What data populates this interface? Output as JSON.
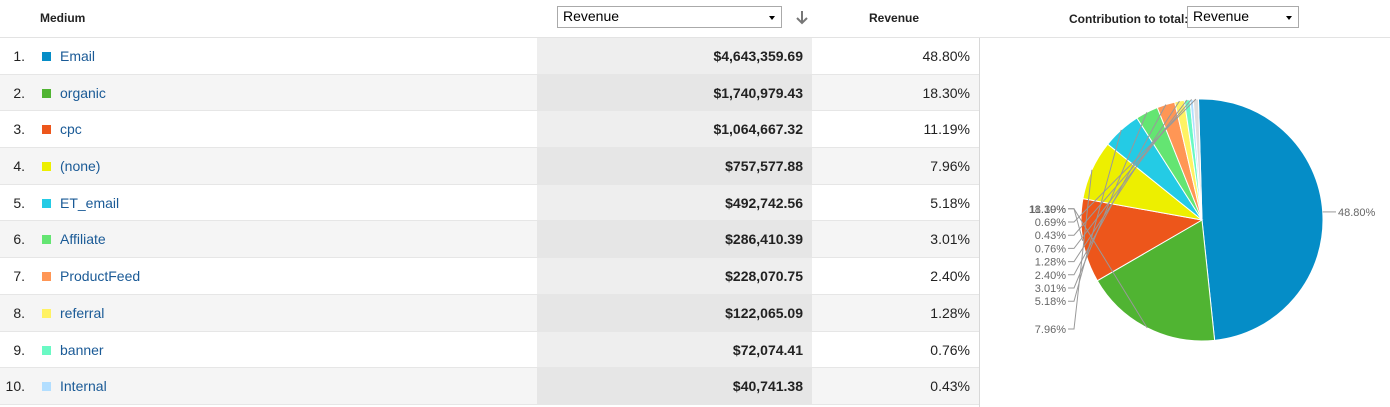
{
  "header": {
    "medium_label": "Medium",
    "metric_select": "Revenue",
    "revenue_label": "Revenue",
    "contribution_label": "Contribution to total:",
    "contribution_select": "Revenue"
  },
  "rows": [
    {
      "index": "1.",
      "medium": "Email",
      "revenue": "$4,643,359.69",
      "percent": "48.80%",
      "color": "#058dc7"
    },
    {
      "index": "2.",
      "medium": "organic",
      "revenue": "$1,740,979.43",
      "percent": "18.30%",
      "color": "#50b432"
    },
    {
      "index": "3.",
      "medium": "cpc",
      "revenue": "$1,064,667.32",
      "percent": "11.19%",
      "color": "#ed561b"
    },
    {
      "index": "4.",
      "medium": "(none)",
      "revenue": "$757,577.88",
      "percent": "7.96%",
      "color": "#edef00"
    },
    {
      "index": "5.",
      "medium": "ET_email",
      "revenue": "$492,742.56",
      "percent": "5.18%",
      "color": "#24cbe5"
    },
    {
      "index": "6.",
      "medium": "Affiliate",
      "revenue": "$286,410.39",
      "percent": "3.01%",
      "color": "#64e572"
    },
    {
      "index": "7.",
      "medium": "ProductFeed",
      "revenue": "$228,070.75",
      "percent": "2.40%",
      "color": "#ff9655"
    },
    {
      "index": "8.",
      "medium": "referral",
      "revenue": "$122,065.09",
      "percent": "1.28%",
      "color": "#fff263"
    },
    {
      "index": "9.",
      "medium": "banner",
      "revenue": "$72,074.41",
      "percent": "0.76%",
      "color": "#6af9c4"
    },
    {
      "index": "10.",
      "medium": "Internal",
      "revenue": "$40,741.38",
      "percent": "0.43%",
      "color": "#b2deff"
    }
  ],
  "chart_data": {
    "type": "pie",
    "slices": [
      {
        "label": "48.80%",
        "value": 48.8,
        "color": "#058dc7"
      },
      {
        "label": "18.30%",
        "value": 18.3,
        "color": "#50b432"
      },
      {
        "label": "11.19%",
        "value": 11.19,
        "color": "#ed561b"
      },
      {
        "label": "7.96%",
        "value": 7.96,
        "color": "#edef00"
      },
      {
        "label": "5.18%",
        "value": 5.18,
        "color": "#24cbe5"
      },
      {
        "label": "3.01%",
        "value": 3.01,
        "color": "#64e572"
      },
      {
        "label": "2.40%",
        "value": 2.4,
        "color": "#ff9655"
      },
      {
        "label": "1.28%",
        "value": 1.28,
        "color": "#fff263"
      },
      {
        "label": "0.76%",
        "value": 0.76,
        "color": "#6af9c4"
      },
      {
        "label": "0.43%",
        "value": 0.43,
        "color": "#b2deff"
      },
      {
        "label": "0.69%",
        "value": 0.69,
        "color": "#dddddd"
      }
    ]
  }
}
